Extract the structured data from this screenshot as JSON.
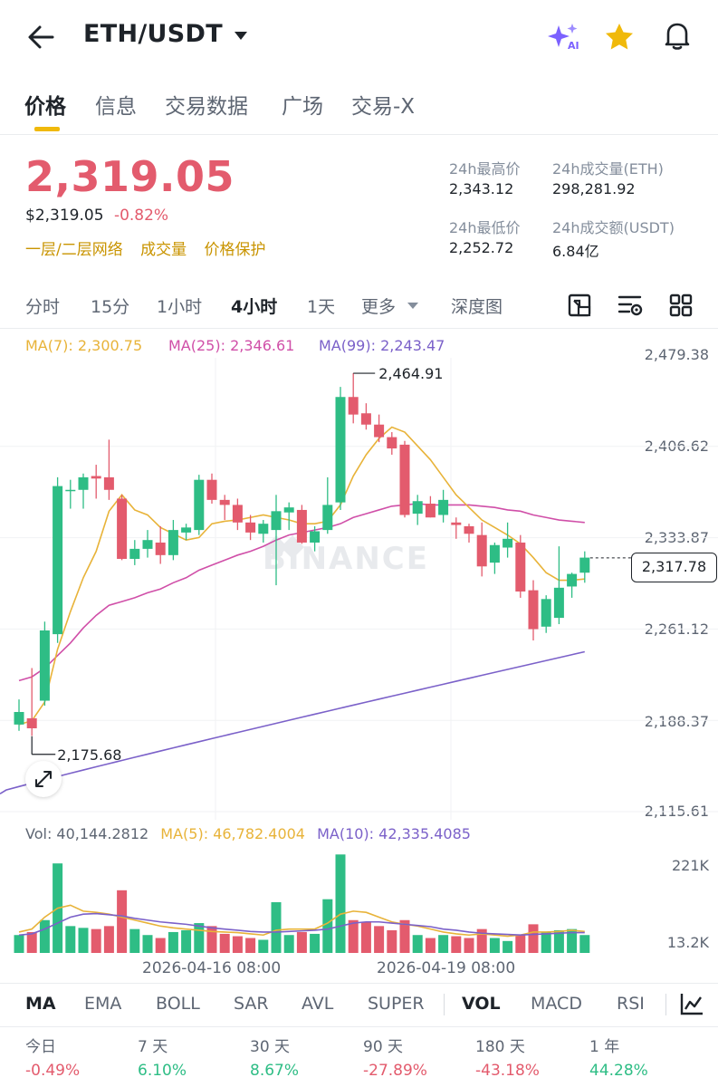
{
  "header": {
    "pair": "ETH/USDT",
    "icons": [
      "back-arrow-icon",
      "dropdown-caret-icon",
      "ai-sparkle-icon",
      "star-icon",
      "bell-icon"
    ],
    "ai_label": "AI"
  },
  "tabs": [
    {
      "label": "价格",
      "active": true
    },
    {
      "label": "信息",
      "active": false
    },
    {
      "label": "交易数据",
      "active": false
    },
    {
      "label": "广场",
      "active": false
    },
    {
      "label": "交易-X",
      "active": false
    }
  ],
  "ticker": {
    "last_price": "2,319.05",
    "usd_price": "$2,319.05",
    "change_pct": "-0.82%",
    "links": [
      "一层/二层网络",
      "成交量",
      "价格保护"
    ],
    "high_label": "24h最高价",
    "high_value": "2,343.12",
    "low_label": "24h最低价",
    "low_value": "2,252.72",
    "vol_eth_label": "24h成交量(ETH)",
    "vol_eth_value": "298,281.92",
    "vol_usdt_label": "24h成交额(USDT)",
    "vol_usdt_value": "6.84亿"
  },
  "intervals": [
    {
      "label": "分时",
      "active": false
    },
    {
      "label": "15分",
      "active": false
    },
    {
      "label": "1小时",
      "active": false
    },
    {
      "label": "4小时",
      "active": true
    },
    {
      "label": "1天",
      "active": false
    },
    {
      "label": "更多",
      "active": false
    },
    {
      "label": "深度图",
      "active": false
    }
  ],
  "chart_toolbar_icons": [
    "chart-settings-icon",
    "indicator-settings-icon",
    "grid-layout-icon"
  ],
  "ma_legend": {
    "ma7": "MA(7): 2,300.75",
    "ma25": "MA(25): 2,346.61",
    "ma99": "MA(99): 2,243.47"
  },
  "colors": {
    "up": "#2ebd85",
    "down": "#e35b6d",
    "ma7": "#e8b339",
    "ma25": "#d04fa8",
    "ma99": "#7b61c9",
    "accent": "#f0b90b"
  },
  "watermark": "BINANCE",
  "chart_data": {
    "type": "candlestick",
    "price_axis_ticks": [
      "2,479.38",
      "2,406.62",
      "2,333.87",
      "2,261.12",
      "2,188.37",
      "2,115.61"
    ],
    "current_price_tag": "2,317.78",
    "high_marker": "2,464.91",
    "low_marker": "2,175.68",
    "candles": [
      {
        "o": 2185,
        "h": 2205,
        "l": 2180,
        "c": 2195
      },
      {
        "o": 2190,
        "h": 2230,
        "l": 2176,
        "c": 2182
      },
      {
        "o": 2204,
        "h": 2267,
        "l": 2200,
        "c": 2260
      },
      {
        "o": 2257,
        "h": 2382,
        "l": 2250,
        "c": 2375
      },
      {
        "o": 2371,
        "h": 2380,
        "l": 2357,
        "c": 2372
      },
      {
        "o": 2372,
        "h": 2385,
        "l": 2357,
        "c": 2382
      },
      {
        "o": 2383,
        "h": 2392,
        "l": 2365,
        "c": 2381
      },
      {
        "o": 2382,
        "h": 2412,
        "l": 2364,
        "c": 2372
      },
      {
        "o": 2365,
        "h": 2368,
        "l": 2316,
        "c": 2317
      },
      {
        "o": 2317,
        "h": 2332,
        "l": 2312,
        "c": 2325
      },
      {
        "o": 2325,
        "h": 2340,
        "l": 2318,
        "c": 2332
      },
      {
        "o": 2330,
        "h": 2343,
        "l": 2313,
        "c": 2320
      },
      {
        "o": 2320,
        "h": 2348,
        "l": 2316,
        "c": 2340
      },
      {
        "o": 2338,
        "h": 2345,
        "l": 2332,
        "c": 2342
      },
      {
        "o": 2340,
        "h": 2384,
        "l": 2336,
        "c": 2380
      },
      {
        "o": 2380,
        "h": 2385,
        "l": 2361,
        "c": 2364
      },
      {
        "o": 2364,
        "h": 2368,
        "l": 2348,
        "c": 2360
      },
      {
        "o": 2360,
        "h": 2365,
        "l": 2340,
        "c": 2346
      },
      {
        "o": 2346,
        "h": 2352,
        "l": 2332,
        "c": 2338
      },
      {
        "o": 2337,
        "h": 2348,
        "l": 2330,
        "c": 2345
      },
      {
        "o": 2340,
        "h": 2368,
        "l": 2296,
        "c": 2355
      },
      {
        "o": 2354,
        "h": 2362,
        "l": 2340,
        "c": 2358
      },
      {
        "o": 2356,
        "h": 2360,
        "l": 2329,
        "c": 2330
      },
      {
        "o": 2330,
        "h": 2343,
        "l": 2323,
        "c": 2339
      },
      {
        "o": 2340,
        "h": 2382,
        "l": 2337,
        "c": 2360
      },
      {
        "o": 2362,
        "h": 2454,
        "l": 2356,
        "c": 2446
      },
      {
        "o": 2446,
        "h": 2465,
        "l": 2425,
        "c": 2432
      },
      {
        "o": 2433,
        "h": 2441,
        "l": 2420,
        "c": 2424
      },
      {
        "o": 2424,
        "h": 2432,
        "l": 2410,
        "c": 2414
      },
      {
        "o": 2414,
        "h": 2418,
        "l": 2400,
        "c": 2405
      },
      {
        "o": 2408,
        "h": 2411,
        "l": 2350,
        "c": 2352
      },
      {
        "o": 2353,
        "h": 2368,
        "l": 2344,
        "c": 2363
      },
      {
        "o": 2361,
        "h": 2367,
        "l": 2350,
        "c": 2350
      },
      {
        "o": 2352,
        "h": 2372,
        "l": 2346,
        "c": 2364
      },
      {
        "o": 2346,
        "h": 2350,
        "l": 2333,
        "c": 2344
      },
      {
        "o": 2343,
        "h": 2345,
        "l": 2330,
        "c": 2337
      },
      {
        "o": 2336,
        "h": 2346,
        "l": 2303,
        "c": 2311
      },
      {
        "o": 2314,
        "h": 2330,
        "l": 2305,
        "c": 2328
      },
      {
        "o": 2326,
        "h": 2346,
        "l": 2318,
        "c": 2333
      },
      {
        "o": 2330,
        "h": 2336,
        "l": 2286,
        "c": 2291
      },
      {
        "o": 2292,
        "h": 2300,
        "l": 2252,
        "c": 2261
      },
      {
        "o": 2263,
        "h": 2288,
        "l": 2258,
        "c": 2285
      },
      {
        "o": 2270,
        "h": 2327,
        "l": 2265,
        "c": 2294
      },
      {
        "o": 2295,
        "h": 2306,
        "l": 2286,
        "c": 2305
      },
      {
        "o": 2306,
        "h": 2323,
        "l": 2298,
        "c": 2318
      }
    ],
    "ma7": [
      2185,
      2188,
      2203,
      2245,
      2275,
      2302,
      2323,
      2355,
      2368,
      2356,
      2352,
      2342,
      2337,
      2332,
      2334,
      2345,
      2347,
      2348,
      2350,
      2352,
      2350,
      2348,
      2345,
      2345,
      2347,
      2360,
      2383,
      2400,
      2413,
      2422,
      2418,
      2407,
      2396,
      2382,
      2368,
      2358,
      2348,
      2342,
      2336,
      2329,
      2318,
      2306,
      2300,
      2300,
      2301
    ],
    "ma25": [
      2220,
      2223,
      2230,
      2240,
      2250,
      2262,
      2272,
      2280,
      2283,
      2286,
      2290,
      2293,
      2298,
      2302,
      2308,
      2312,
      2316,
      2320,
      2323,
      2327,
      2332,
      2336,
      2338,
      2340,
      2342,
      2345,
      2350,
      2353,
      2356,
      2359,
      2360,
      2361,
      2360,
      2360,
      2360,
      2360,
      2359,
      2358,
      2356,
      2355,
      2352,
      2350,
      2348,
      2347,
      2346
    ],
    "ma99_start": 2120,
    "ma99_end": 2243,
    "volume": {
      "legend_vol": "Vol: 40,144.2812",
      "legend_ma5": "MA(5): 46,782.4004",
      "legend_ma10": "MA(10): 42,335.4085",
      "axis_ticks": [
        "221K",
        "13.2K"
      ],
      "values": [
        30,
        35,
        55,
        150,
        45,
        42,
        40,
        45,
        105,
        40,
        30,
        25,
        35,
        38,
        50,
        45,
        32,
        28,
        25,
        22,
        85,
        30,
        35,
        32,
        90,
        165,
        55,
        52,
        45,
        38,
        55,
        30,
        25,
        30,
        28,
        25,
        40,
        25,
        20,
        30,
        48,
        35,
        38,
        40,
        30
      ],
      "ma5": [
        35,
        40,
        60,
        75,
        80,
        70,
        68,
        65,
        60,
        55,
        50,
        45,
        42,
        40,
        38,
        36,
        35,
        34,
        32,
        30,
        38,
        40,
        40,
        40,
        50,
        65,
        70,
        68,
        60,
        52,
        48,
        45,
        40,
        35,
        32,
        30,
        32,
        30,
        28,
        30,
        35,
        35,
        36,
        38,
        36
      ],
      "ma10": [
        30,
        32,
        40,
        50,
        60,
        65,
        66,
        64,
        62,
        58,
        55,
        52,
        50,
        48,
        45,
        42,
        40,
        38,
        36,
        35,
        35,
        36,
        37,
        38,
        40,
        45,
        50,
        52,
        52,
        50,
        48,
        46,
        44,
        40,
        38,
        35,
        33,
        32,
        31,
        30,
        31,
        32,
        33,
        34,
        34
      ]
    },
    "time_labels": [
      "2026-04-16 08:00",
      "2026-04-19 08:00"
    ]
  },
  "indicators": [
    {
      "label": "MA",
      "active": true
    },
    {
      "label": "EMA",
      "active": false
    },
    {
      "label": "BOLL",
      "active": false
    },
    {
      "label": "SAR",
      "active": false
    },
    {
      "label": "AVL",
      "active": false
    },
    {
      "label": "SUPER",
      "active": false
    },
    {
      "label": "VOL",
      "active": true
    },
    {
      "label": "MACD",
      "active": false
    },
    {
      "label": "RSI",
      "active": false
    }
  ],
  "performance": [
    {
      "label": "今日",
      "value": "-0.49%",
      "dir": "down"
    },
    {
      "label": "7 天",
      "value": "6.10%",
      "dir": "up"
    },
    {
      "label": "30 天",
      "value": "8.67%",
      "dir": "up"
    },
    {
      "label": "90 天",
      "value": "-27.89%",
      "dir": "down"
    },
    {
      "label": "180 天",
      "value": "-43.18%",
      "dir": "down"
    },
    {
      "label": "1 年",
      "value": "44.28%",
      "dir": "up"
    }
  ]
}
